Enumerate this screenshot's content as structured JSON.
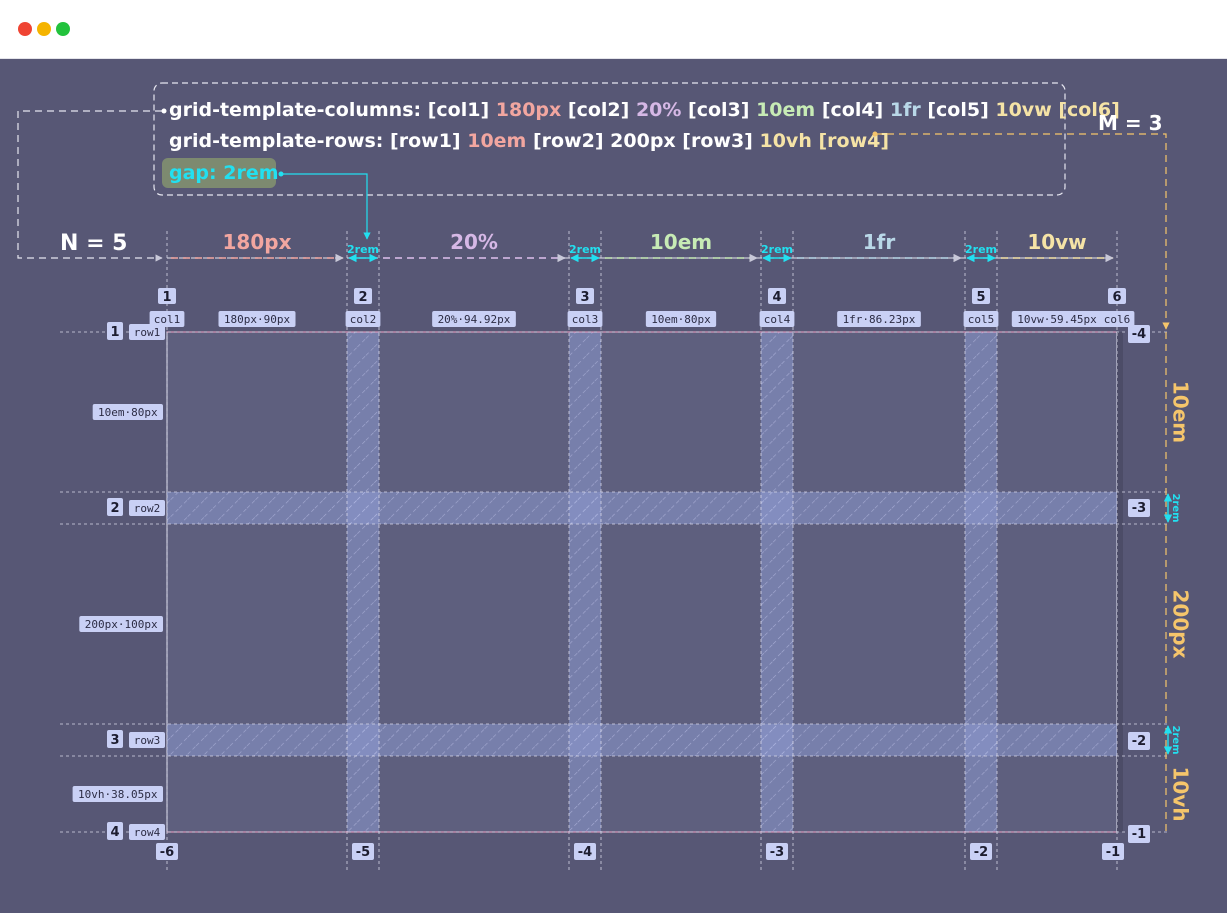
{
  "window": {
    "controls": [
      "close",
      "minimize",
      "maximize"
    ]
  },
  "code": {
    "columns_prop": "grid-template-columns:",
    "columns_tokens": [
      {
        "text": "[col1]",
        "color": "#ffffff"
      },
      {
        "text": "180px",
        "color": "#f2a6a0"
      },
      {
        "text": "[col2]",
        "color": "#ffffff"
      },
      {
        "text": "20%",
        "color": "#d6b8e6"
      },
      {
        "text": "[col3]",
        "color": "#ffffff"
      },
      {
        "text": "10em",
        "color": "#c7ebb5"
      },
      {
        "text": "[col4]",
        "color": "#ffffff"
      },
      {
        "text": "1fr",
        "color": "#b9d8e8"
      },
      {
        "text": "[col5]",
        "color": "#ffffff"
      },
      {
        "text": "10vw",
        "color": "#f5e3a6"
      },
      {
        "text": "[col6]",
        "color": "#f5e3a6"
      }
    ],
    "rows_prop": "grid-template-rows:",
    "rows_tokens": [
      {
        "text": "[row1]",
        "color": "#ffffff"
      },
      {
        "text": "10em",
        "color": "#f2a6a0"
      },
      {
        "text": "[row2]",
        "color": "#ffffff"
      },
      {
        "text": "200px",
        "color": "#ffffff"
      },
      {
        "text": "[row3]",
        "color": "#ffffff"
      },
      {
        "text": "10vh",
        "color": "#f5e3a6"
      },
      {
        "text": "[row4]",
        "color": "#f5e3a6"
      }
    ],
    "gap": "gap: 2rem"
  },
  "n_label": "N = 5",
  "m_label": "M = 3",
  "gap_label": "2rem",
  "column_tracks": [
    {
      "size": "180px",
      "color": "#f2a6a0",
      "tag": "180px·90px"
    },
    {
      "size": "20%",
      "color": "#d6b8e6",
      "tag": "20%·94.92px"
    },
    {
      "size": "10em",
      "color": "#c7ebb5",
      "tag": "10em·80px"
    },
    {
      "size": "1fr",
      "color": "#b9d8e8",
      "tag": "1fr·86.23px"
    },
    {
      "size": "10vw",
      "color": "#f5e3a6",
      "tag": "10vw·59.45px"
    }
  ],
  "column_lines": [
    {
      "num": "1",
      "name": "col1",
      "neg": "-6"
    },
    {
      "num": "2",
      "name": "col2",
      "neg": "-5"
    },
    {
      "num": "3",
      "name": "col3",
      "neg": "-4"
    },
    {
      "num": "4",
      "name": "col4",
      "neg": "-3"
    },
    {
      "num": "5",
      "name": "col5",
      "neg": "-2"
    },
    {
      "num": "6",
      "name": "col6",
      "neg": "-1"
    }
  ],
  "row_tracks": [
    {
      "size": "10em",
      "color": "#f5c56b",
      "tag": "10em·80px"
    },
    {
      "size": "200px",
      "color": "#f5c56b",
      "tag": "200px·100px"
    },
    {
      "size": "10vh",
      "color": "#f5c56b",
      "tag": "10vh·38.05px"
    }
  ],
  "row_lines": [
    {
      "num": "1",
      "name": "row1",
      "neg": "-4"
    },
    {
      "num": "2",
      "name": "row2",
      "neg": "-3"
    },
    {
      "num": "3",
      "name": "row3",
      "neg": "-2"
    },
    {
      "num": "4",
      "name": "row4",
      "neg": "-1"
    }
  ],
  "colors": {
    "canvas": "#575775",
    "grid_fill": "#5e5f7e",
    "gap_fill": "#8c98cf",
    "gap_text": "#22e0f0",
    "badge": "#c9d0f5",
    "accent_orange": "#f5c56b"
  }
}
